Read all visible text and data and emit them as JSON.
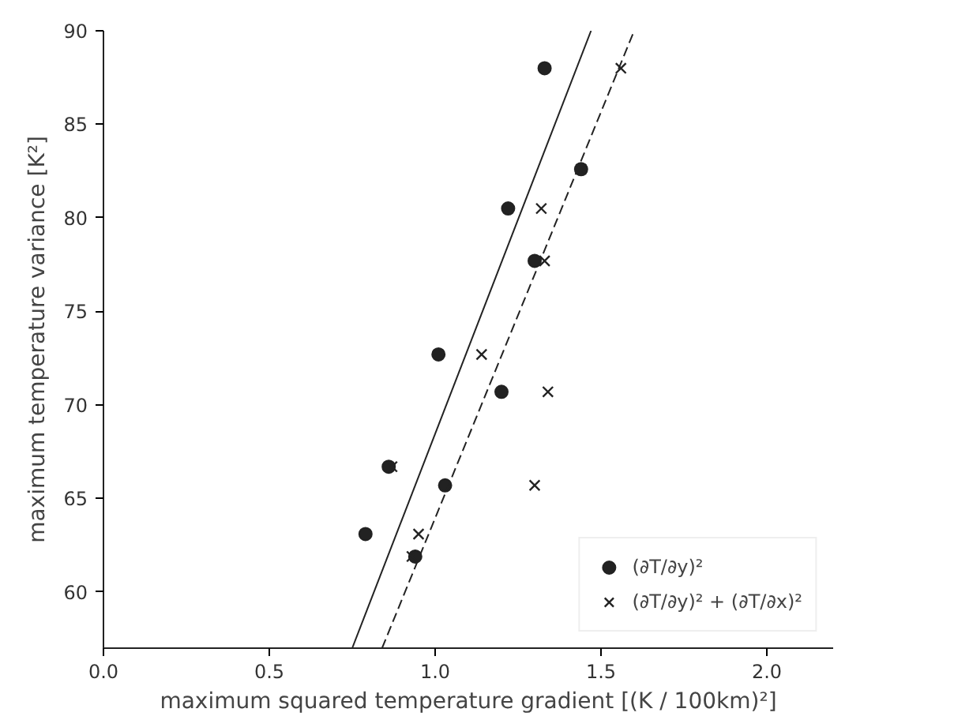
{
  "chart_data": {
    "type": "scatter",
    "xlabel": "maximum squared temperature gradient [(K / 100km)²]",
    "ylabel": "maximum temperature variance [K²]",
    "xlim": [
      0,
      2.2
    ],
    "ylim": [
      57,
      90
    ],
    "xticks": [
      {
        "value": 0,
        "label": "0.0"
      },
      {
        "value": 0.5,
        "label": "0.5"
      },
      {
        "value": 1,
        "label": "1.0"
      },
      {
        "value": 1.5,
        "label": "1.5"
      },
      {
        "value": 2,
        "label": "2.0"
      }
    ],
    "yticks": [
      60,
      65,
      70,
      75,
      80,
      85,
      90
    ],
    "grid": false,
    "legend": "bottom right",
    "series": [
      {
        "name": "(∂T/∂y)²",
        "marker": "circle",
        "color": "#222222",
        "x": [
          1.33,
          1.44,
          1.22,
          1.3,
          1.01,
          1.2,
          0.86,
          1.03,
          0.79,
          0.94
        ],
        "values": [
          88.0,
          82.6,
          80.5,
          77.7,
          72.7,
          70.7,
          66.7,
          65.7,
          63.1,
          61.9
        ]
      },
      {
        "name": "(∂T/∂y)² + (∂T/∂x)²",
        "marker": "cross",
        "color": "#222222",
        "x": [
          1.56,
          1.44,
          1.32,
          1.33,
          1.14,
          1.34,
          0.87,
          1.3,
          0.95,
          0.93
        ],
        "values": [
          88.0,
          82.6,
          80.5,
          77.7,
          72.7,
          70.7,
          66.7,
          65.7,
          63.1,
          61.9
        ]
      },
      {
        "type": "line",
        "line_style": "solid",
        "color": "#222222",
        "x": [
          0.75,
          1.47
        ],
        "values": [
          57,
          90
        ]
      },
      {
        "type": "line",
        "line_style": "dashed",
        "color": "#222222",
        "x": [
          0.84,
          1.6
        ],
        "values": [
          57,
          90
        ]
      }
    ]
  }
}
